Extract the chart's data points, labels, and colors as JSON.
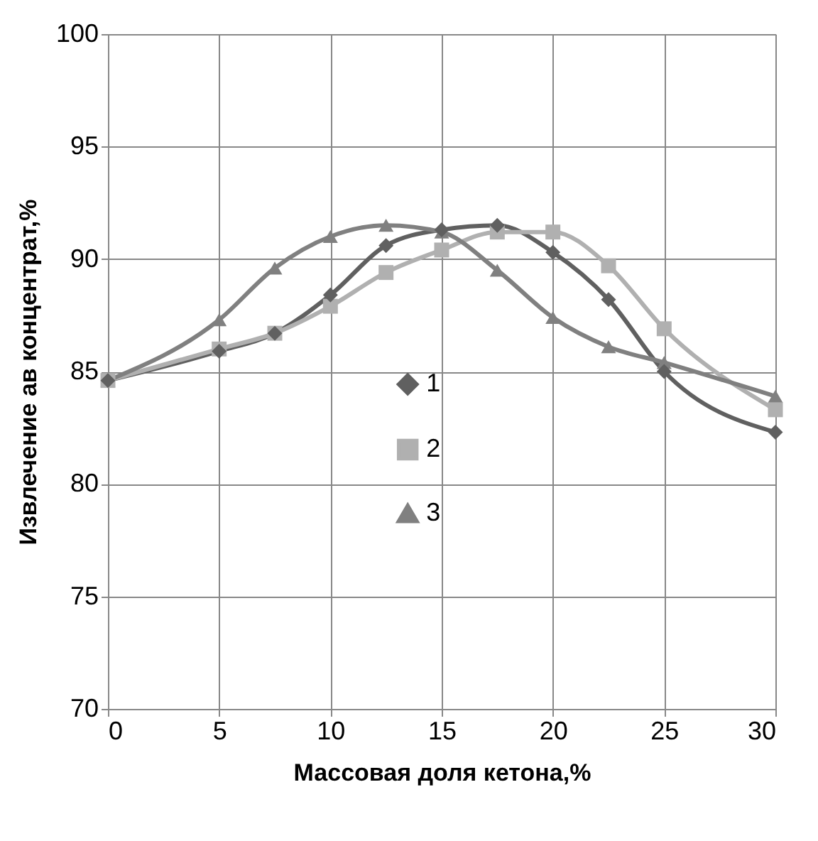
{
  "chart_data": {
    "type": "line",
    "xlabel": "Массовая доля кетона,%",
    "ylabel": "Извлечение ав концентрат,%",
    "x": [
      0,
      5,
      7.5,
      10,
      12.5,
      15,
      17.5,
      20,
      22.5,
      25,
      30
    ],
    "series": [
      {
        "name": "1",
        "color": "#606060",
        "marker": "diamond",
        "values": [
          84.6,
          85.9,
          86.7,
          88.4,
          90.6,
          91.3,
          91.5,
          90.3,
          88.2,
          85.0,
          82.3
        ]
      },
      {
        "name": "2",
        "color": "#b0b0b0",
        "marker": "square",
        "values": [
          84.6,
          86.0,
          86.7,
          87.9,
          89.4,
          90.4,
          91.2,
          91.2,
          89.7,
          86.9,
          83.3
        ]
      },
      {
        "name": "3",
        "color": "#808080",
        "marker": "triangle",
        "values": [
          84.6,
          87.3,
          89.6,
          91.0,
          91.5,
          91.2,
          89.5,
          87.4,
          86.1,
          85.4,
          83.9
        ]
      }
    ],
    "xlim": [
      0,
      30
    ],
    "xticks": [
      0,
      5,
      10,
      15,
      20,
      25,
      30
    ],
    "ylim": [
      70,
      100
    ],
    "yticks": [
      70,
      75,
      80,
      85,
      90,
      95,
      100
    ],
    "grid": true,
    "legend": "center",
    "line_style": "solid"
  }
}
